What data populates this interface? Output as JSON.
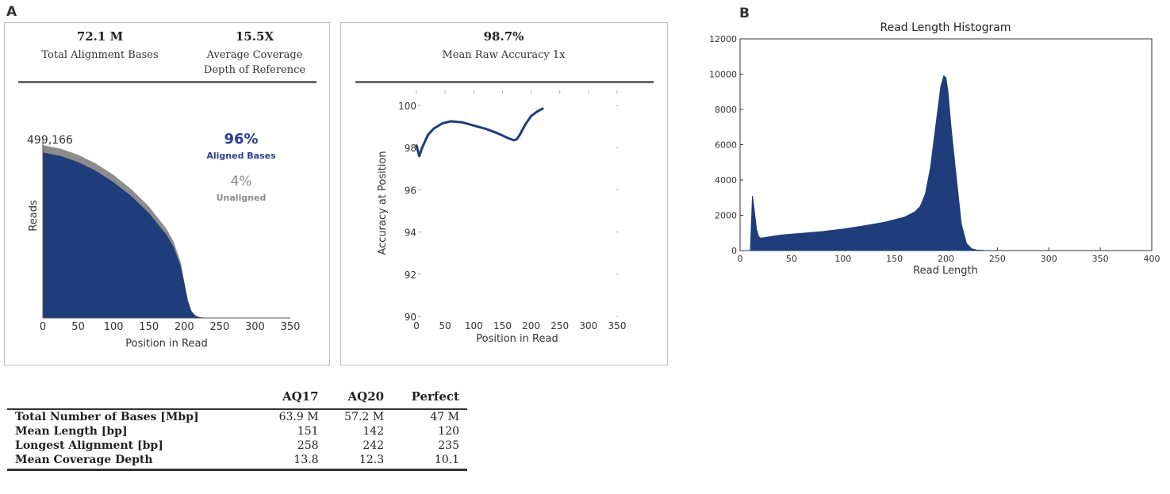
{
  "panels": {
    "a": "A",
    "b": "B"
  },
  "summary": {
    "total_bases_value": "72.1 M",
    "total_bases_label": "Total Alignment Bases",
    "coverage_value": "15.5X",
    "coverage_label_line1": "Average Coverage",
    "coverage_label_line2": "Depth of Reference",
    "accuracy_value": "98.7%",
    "accuracy_label": "Mean Raw Accuracy 1x"
  },
  "reads_chart": {
    "peak_label": "499,166",
    "aligned_pct": "96%",
    "aligned_label": "Aligned Bases",
    "unaligned_pct": "4%",
    "unaligned_label": "Unaligned",
    "aligned_color": "#1f3d7a",
    "unaligned_color": "#8c8c8c"
  },
  "table": {
    "columns": [
      "",
      "AQ17",
      "AQ20",
      "Perfect"
    ],
    "rows": [
      [
        "Total Number of Bases [Mbp]",
        "63.9 M",
        "57.2 M",
        "47 M"
      ],
      [
        "Mean Length [bp]",
        "151",
        "142",
        "120"
      ],
      [
        "Longest Alignment [bp]",
        "258",
        "242",
        "235"
      ],
      [
        "Mean Coverage Depth",
        "13.8",
        "12.3",
        "10.1"
      ]
    ]
  },
  "chart_data": [
    {
      "type": "area",
      "title": "",
      "xlabel": "Position in Read",
      "ylabel": "Reads",
      "xlim": [
        0,
        350
      ],
      "xticks": [
        0,
        50,
        100,
        150,
        200,
        250,
        300,
        350
      ],
      "series": [
        {
          "name": "Aligned Bases",
          "x": [
            0,
            25,
            50,
            75,
            100,
            125,
            150,
            175,
            185,
            195,
            200,
            205,
            210,
            215,
            220,
            230,
            250,
            350
          ],
          "values": [
            478000,
            468000,
            450000,
            425000,
            392000,
            352000,
            303000,
            240000,
            205000,
            150000,
            100000,
            50000,
            20000,
            8000,
            3000,
            0,
            0,
            0
          ]
        },
        {
          "name": "Unaligned",
          "x": [
            0,
            25,
            50,
            75,
            100,
            125,
            150,
            175,
            185,
            195,
            200,
            205,
            210,
            215,
            220,
            230,
            250,
            350
          ],
          "values": [
            499166,
            489000,
            471000,
            446000,
            413000,
            372000,
            322000,
            257000,
            220000,
            160000,
            106000,
            53000,
            21000,
            8500,
            3200,
            0,
            0,
            0
          ]
        }
      ]
    },
    {
      "type": "line",
      "title": "",
      "xlabel": "Position in Read",
      "ylabel": "Accuracy at Position",
      "xlim": [
        0,
        350
      ],
      "ylim": [
        90,
        101
      ],
      "xticks": [
        0,
        50,
        100,
        150,
        200,
        250,
        300,
        350
      ],
      "yticks": [
        90,
        92,
        94,
        96,
        98,
        100
      ],
      "x": [
        0,
        5,
        10,
        20,
        30,
        45,
        60,
        80,
        100,
        120,
        140,
        160,
        170,
        175,
        180,
        190,
        200,
        210,
        220
      ],
      "values": [
        98.1,
        97.6,
        98.0,
        98.6,
        98.9,
        99.15,
        99.25,
        99.2,
        99.05,
        98.9,
        98.7,
        98.45,
        98.35,
        98.4,
        98.6,
        99.1,
        99.5,
        99.7,
        99.85
      ]
    },
    {
      "type": "bar",
      "title": "Read Length Histogram",
      "xlabel": "Read Length",
      "ylabel": "",
      "xlim": [
        0,
        400
      ],
      "ylim": [
        0,
        12000
      ],
      "xticks": [
        0,
        50,
        100,
        150,
        200,
        250,
        300,
        350,
        400
      ],
      "yticks": [
        0,
        2000,
        4000,
        6000,
        8000,
        10000,
        12000
      ],
      "x": [
        10,
        12,
        14,
        16,
        18,
        20,
        25,
        30,
        40,
        50,
        60,
        80,
        100,
        120,
        140,
        160,
        170,
        175,
        180,
        185,
        190,
        195,
        198,
        200,
        202,
        205,
        210,
        215,
        220,
        225,
        230,
        240
      ],
      "values": [
        0,
        3100,
        2200,
        1200,
        800,
        700,
        750,
        800,
        880,
        930,
        980,
        1080,
        1220,
        1400,
        1600,
        1900,
        2200,
        2500,
        3200,
        4700,
        7000,
        9300,
        9900,
        9800,
        9000,
        7000,
        4200,
        1500,
        400,
        100,
        30,
        0
      ],
      "color": "#1f3d7a"
    }
  ]
}
